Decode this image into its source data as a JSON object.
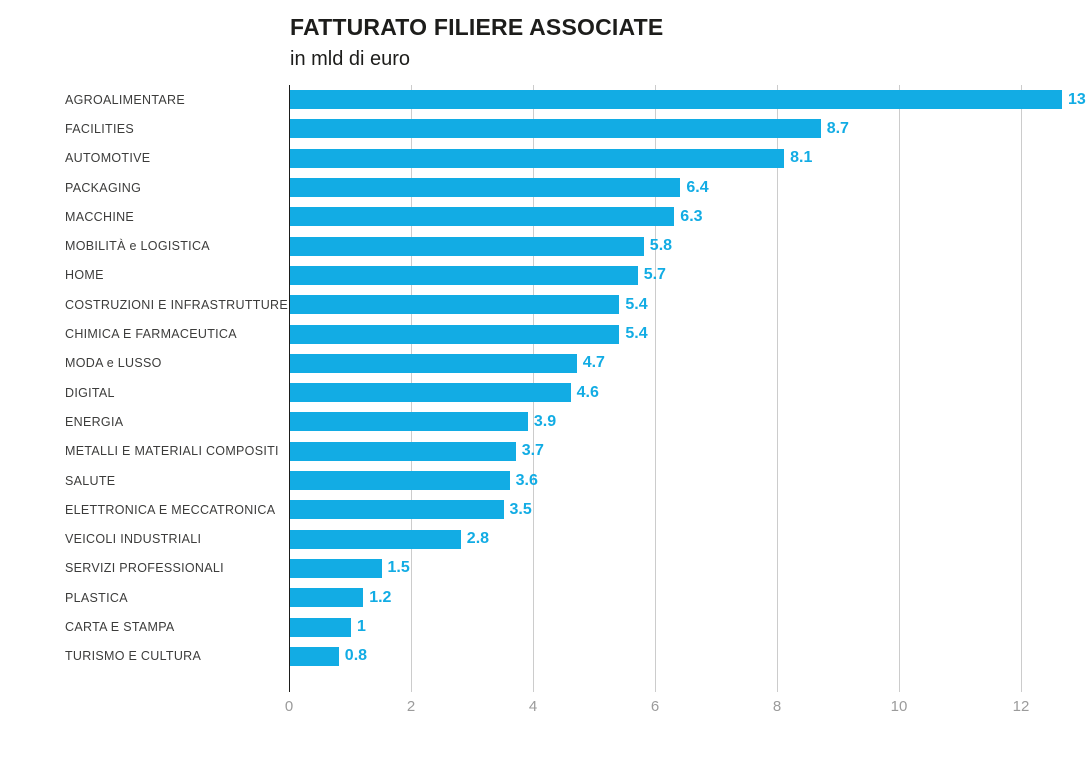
{
  "header": {
    "title": "FATTURATO FILIERE ASSOCIATE",
    "subtitle": "in mld di euro"
  },
  "colors": {
    "bar": "#12ace4",
    "value_label": "#12ace4",
    "title": "#1d1d1b",
    "category_label": "#3c3c3b",
    "tick_label": "#9b9b9b",
    "gridline": "#cccccc",
    "axis_line": "#1d1d1b"
  },
  "chart_data": {
    "type": "bar",
    "orientation": "horizontal",
    "title": "FATTURATO FILIERE ASSOCIATE",
    "subtitle": "in mld di euro",
    "unit": "mld di euro",
    "categories": [
      "AGROALIMENTARE",
      "FACILITIES",
      "AUTOMOTIVE",
      "PACKAGING",
      "MACCHINE",
      "MOBILITÀ e LOGISTICA",
      "HOME",
      "COSTRUZIONI E INFRASTRUTTURE",
      "CHIMICA E FARMACEUTICA",
      "MODA e LUSSO",
      "DIGITAL",
      "ENERGIA",
      "METALLI E MATERIALI COMPOSITI",
      "SALUTE",
      "ELETTRONICA E MECCATRONICA",
      "VEICOLI INDUSTRIALI",
      "SERVIZI PROFESSIONALI",
      "PLASTICA",
      "CARTA E STAMPA",
      "TURISMO E CULTURA"
    ],
    "values": [
      13,
      8.7,
      8.1,
      6.4,
      6.3,
      5.8,
      5.7,
      5.4,
      5.4,
      4.7,
      4.6,
      3.9,
      3.7,
      3.6,
      3.5,
      2.8,
      1.5,
      1.2,
      1,
      0.8
    ],
    "value_labels": [
      "13",
      "8.7",
      "8.1",
      "6.4",
      "6.3",
      "5.8",
      "5.7",
      "5.4",
      "5.4",
      "4.7",
      "4.6",
      "3.9",
      "3.7",
      "3.6",
      "3.5",
      "2.8",
      "1.5",
      "1.2",
      "1",
      "0.8"
    ],
    "x_ticks": [
      0,
      2,
      4,
      6,
      8,
      10,
      12
    ],
    "xlim": [
      0,
      13.15
    ],
    "grid": true,
    "legend": false
  }
}
